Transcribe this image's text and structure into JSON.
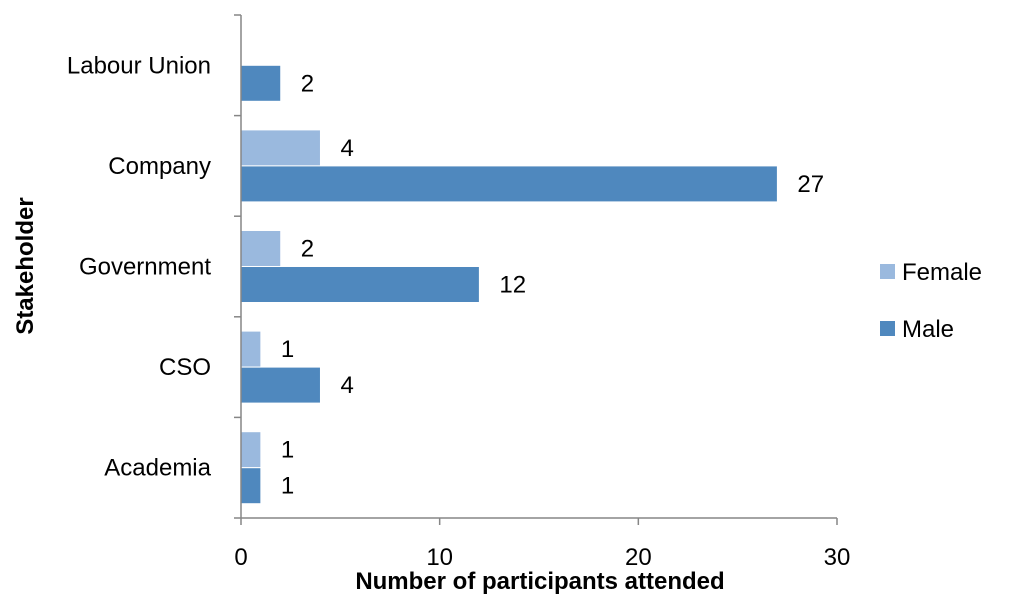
{
  "chart_data": {
    "type": "bar",
    "orientation": "horizontal",
    "title": "",
    "xlabel": "Number of participants attended",
    "ylabel": "Stakeholder",
    "categories": [
      "Academia",
      "CSO",
      "Government",
      "Company",
      "Labour Union"
    ],
    "series": [
      {
        "name": "Female",
        "values": [
          1,
          1,
          2,
          4,
          null
        ],
        "color": "#9ab9de"
      },
      {
        "name": "Male",
        "values": [
          1,
          4,
          12,
          27,
          2
        ],
        "color": "#4f88be"
      }
    ],
    "xlim": [
      0,
      30
    ],
    "xticks": [
      0,
      10,
      20,
      30
    ],
    "grid": false,
    "legend_position": "right"
  }
}
